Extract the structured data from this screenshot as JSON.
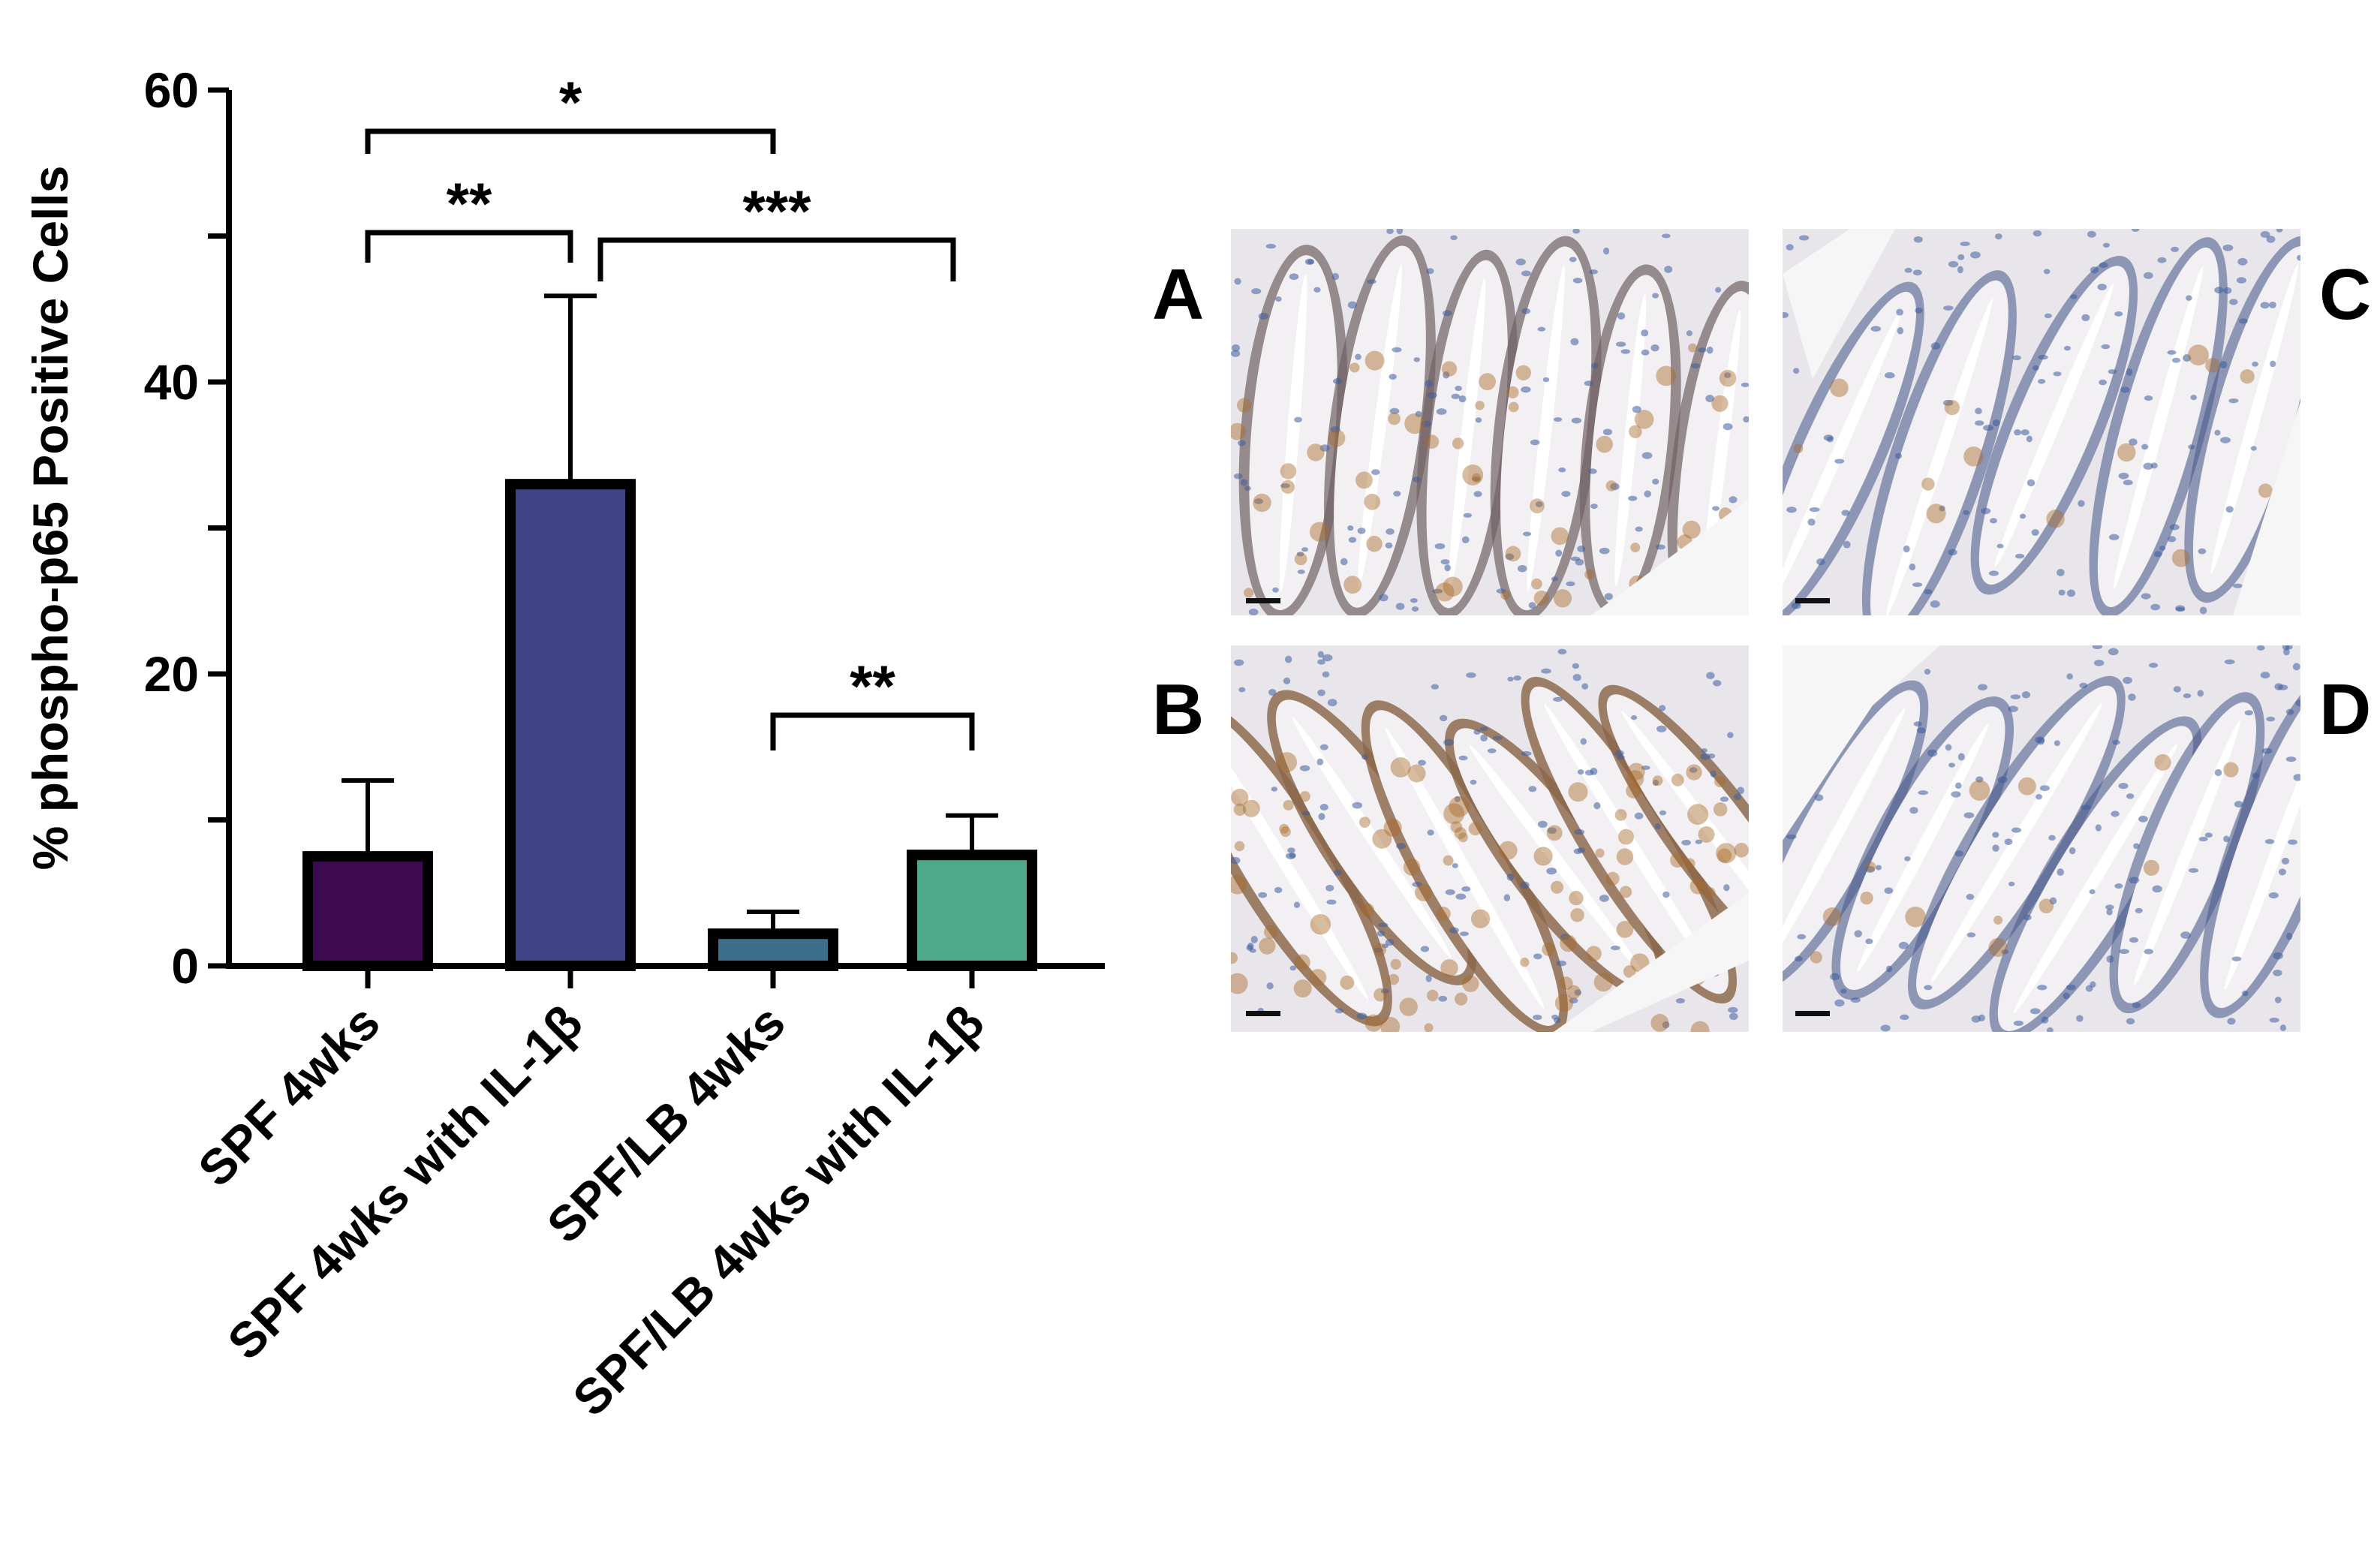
{
  "chart_data": {
    "type": "bar",
    "ylabel": "% phospho-p65 Positive Cells",
    "xlabel": "",
    "ylim": [
      0,
      60
    ],
    "y_ticks": [
      0,
      20,
      40,
      60
    ],
    "y_minor_step": 10,
    "grid": false,
    "legend": "none",
    "categories": [
      "SPF 4wks",
      "SPF 4wks with IL-1β",
      "SPF/LB 4wks",
      "SPF/LB 4wks with IL-1β"
    ],
    "values": [
      7.5,
      33,
      2.2,
      7.6
    ],
    "error_upper": [
      12.7,
      45.9,
      3.7,
      10.3
    ],
    "bar_colors": [
      "#3d0a52",
      "#3f4386",
      "#3b6f8b",
      "#4ea88a"
    ],
    "significance": [
      {
        "from": 0,
        "to": 2,
        "label": "*"
      },
      {
        "from": 0,
        "to": 1,
        "label": "**"
      },
      {
        "from": 1,
        "to": 3,
        "label": "***"
      },
      {
        "from": 2,
        "to": 3,
        "label": "**"
      }
    ]
  },
  "panels": [
    {
      "letter": "A",
      "stain": "moderate"
    },
    {
      "letter": "B",
      "stain": "strong"
    },
    {
      "letter": "C",
      "stain": "weak"
    },
    {
      "letter": "D",
      "stain": "weak"
    }
  ],
  "colors": {
    "hematoxylin": "#3e5d9e",
    "dab_brown": "#a86b2a",
    "tissue_background": "#e8e6ea",
    "axis": "#000000"
  }
}
